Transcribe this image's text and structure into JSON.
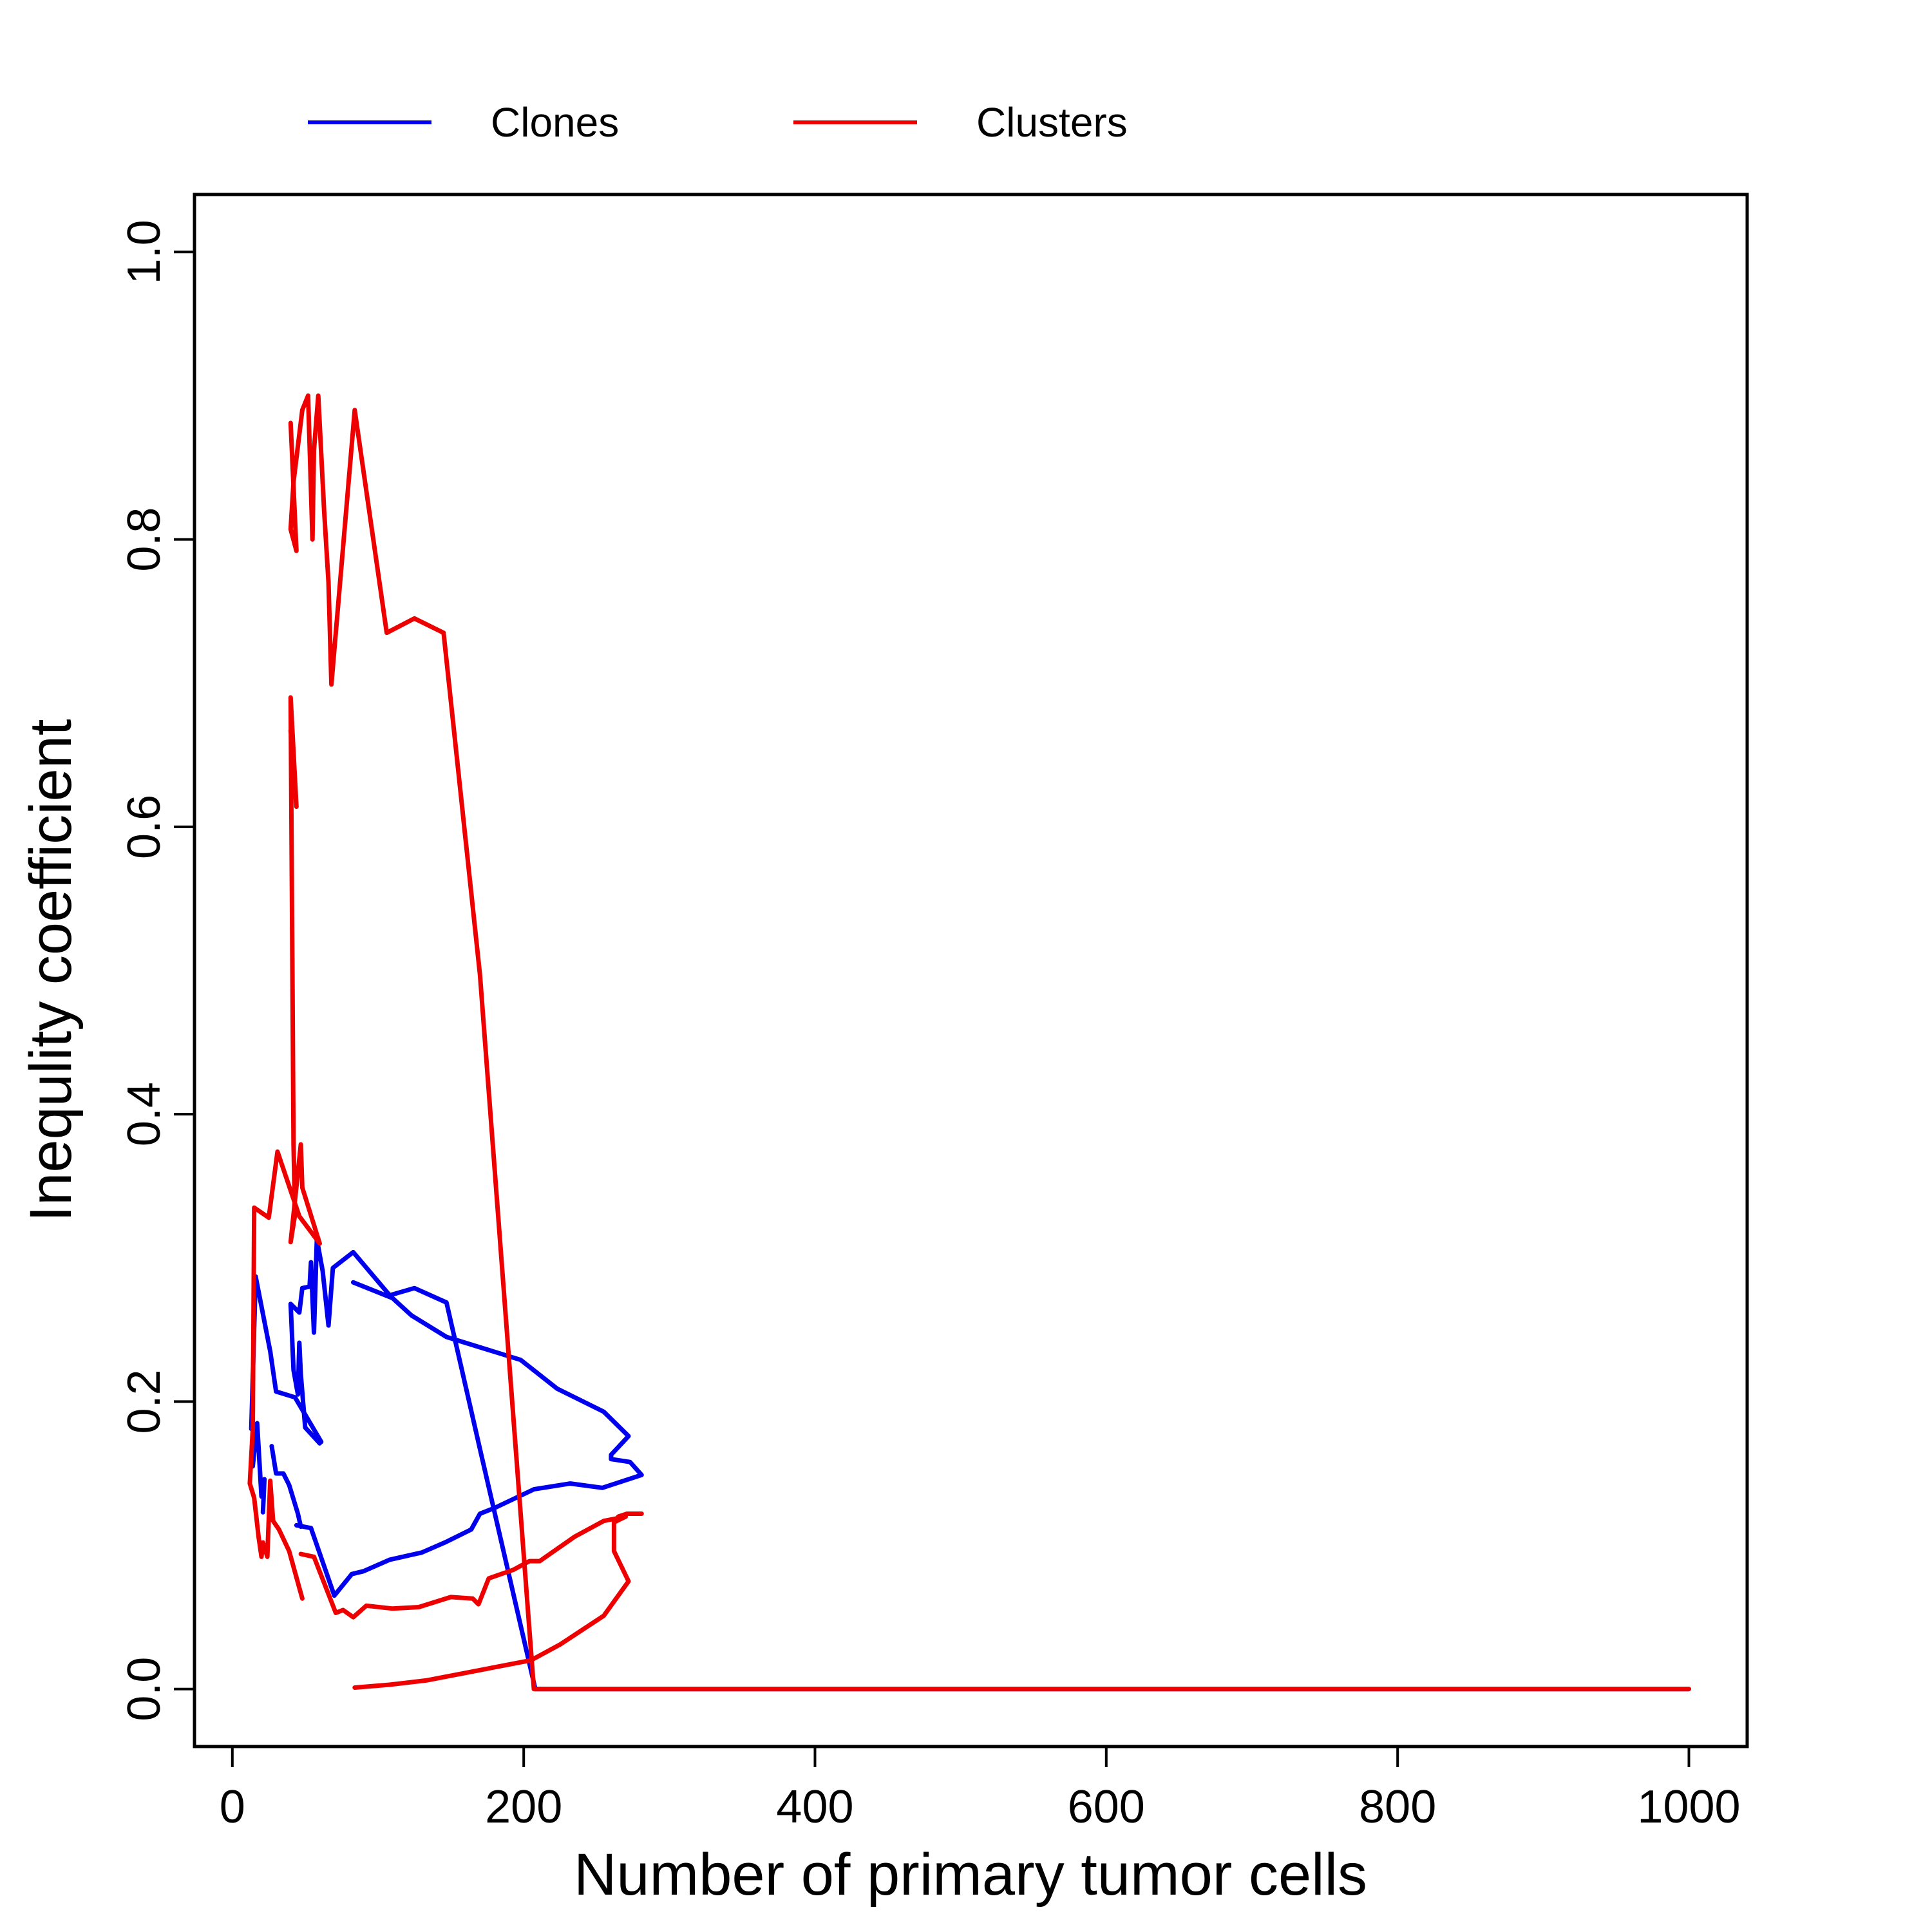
{
  "chart_data": {
    "type": "line",
    "title": "",
    "xlabel": "Number of primary tumor cells",
    "ylabel": "Inequlity coefficient",
    "xlim": [
      -26,
      1040
    ],
    "ylim": [
      -0.04,
      1.04
    ],
    "x_ticks": [
      0,
      200,
      400,
      600,
      800,
      1000
    ],
    "y_ticks": [
      0.0,
      0.2,
      0.4,
      0.6,
      0.8,
      1.0
    ],
    "x_tick_labels": [
      "0",
      "200",
      "400",
      "600",
      "800",
      "1000"
    ],
    "y_tick_labels": [
      "0.0",
      "0.2",
      "0.4",
      "0.6",
      "0.8",
      "1.0"
    ],
    "grid": false,
    "legend_position": "top, outside plot",
    "series": [
      {
        "name": "Clones",
        "color": "#0000ee",
        "points": [
          [
            60,
            0.171
          ],
          [
            50,
            0.182
          ],
          [
            47,
            0.219
          ],
          [
            46,
            0.241
          ],
          [
            45,
            0.205
          ],
          [
            42,
            0.222
          ],
          [
            40,
            0.268
          ],
          [
            46,
            0.262
          ],
          [
            48,
            0.279
          ],
          [
            53,
            0.28
          ],
          [
            54,
            0.297
          ],
          [
            56,
            0.248
          ],
          [
            58,
            0.313
          ],
          [
            62,
            0.291
          ],
          [
            66,
            0.253
          ],
          [
            69,
            0.293
          ],
          [
            83,
            0.304
          ],
          [
            108,
            0.274
          ],
          [
            125,
            0.279
          ],
          [
            147,
            0.269
          ],
          [
            170,
            0.167
          ],
          [
            208,
            0.0
          ],
          [
            1000,
            0.0
          ]
        ]
      },
      {
        "name": "Clones",
        "color": "#0000ee",
        "points": [
          [
            83,
            0.283
          ],
          [
            110,
            0.272
          ],
          [
            123,
            0.26
          ],
          [
            147,
            0.245
          ],
          [
            198,
            0.229
          ],
          [
            223,
            0.209
          ],
          [
            255,
            0.193
          ],
          [
            272,
            0.176
          ],
          [
            260,
            0.163
          ],
          [
            260,
            0.16
          ],
          [
            273,
            0.158
          ],
          [
            281,
            0.149
          ],
          [
            254,
            0.14
          ],
          [
            232,
            0.143
          ],
          [
            207,
            0.139
          ],
          [
            180,
            0.126
          ],
          [
            170,
            0.122
          ],
          [
            164,
            0.111
          ],
          [
            146,
            0.102
          ],
          [
            130,
            0.095
          ],
          [
            108,
            0.09
          ],
          [
            90,
            0.082
          ],
          [
            82,
            0.08
          ],
          [
            70,
            0.065
          ],
          [
            54,
            0.112
          ],
          [
            44,
            0.114
          ]
        ]
      },
      {
        "name": "Clones",
        "color": "#0000ee",
        "points": [
          [
            13,
            0.181
          ],
          [
            16,
            0.287
          ],
          [
            26,
            0.235
          ],
          [
            30,
            0.207
          ],
          [
            43,
            0.203
          ],
          [
            61,
            0.172
          ]
        ]
      },
      {
        "name": "Clones",
        "color": "#0000ee",
        "points": [
          [
            14,
            0.155
          ],
          [
            17,
            0.185
          ],
          [
            20,
            0.134
          ],
          [
            22,
            0.146
          ],
          [
            21,
            0.123
          ]
        ]
      },
      {
        "name": "Clones",
        "color": "#0000ee",
        "points": [
          [
            27,
            0.169
          ],
          [
            30,
            0.15
          ],
          [
            35,
            0.15
          ],
          [
            39,
            0.142
          ],
          [
            45,
            0.122
          ],
          [
            47,
            0.113
          ]
        ]
      },
      {
        "name": "Clusters",
        "color": "#ee0000",
        "points": [
          [
            40,
            0.881
          ],
          [
            44,
            0.792
          ],
          [
            40,
            0.807
          ],
          [
            42,
            0.84
          ],
          [
            48,
            0.89
          ],
          [
            52,
            0.9
          ],
          [
            55,
            0.8
          ],
          [
            56,
            0.862
          ],
          [
            59,
            0.9
          ],
          [
            63,
            0.82
          ],
          [
            66,
            0.77
          ],
          [
            68,
            0.699
          ],
          [
            84,
            0.89
          ],
          [
            106,
            0.735
          ],
          [
            125,
            0.745
          ],
          [
            145,
            0.735
          ],
          [
            170,
            0.497
          ],
          [
            207,
            0.0
          ],
          [
            1000,
            0.0
          ]
        ]
      },
      {
        "name": "Clusters",
        "color": "#ee0000",
        "points": [
          [
            40,
            0.667
          ],
          [
            44,
            0.614
          ],
          [
            40,
            0.69
          ],
          [
            42,
            0.379
          ],
          [
            43,
            0.33
          ],
          [
            40,
            0.311
          ],
          [
            47,
            0.379
          ],
          [
            48,
            0.349
          ],
          [
            60,
            0.31
          ],
          [
            46,
            0.329
          ],
          [
            31,
            0.374
          ],
          [
            25,
            0.328
          ],
          [
            15,
            0.335
          ],
          [
            14,
            0.181
          ],
          [
            12,
            0.143
          ],
          [
            15,
            0.133
          ],
          [
            18,
            0.106
          ],
          [
            20,
            0.092
          ],
          [
            21,
            0.102
          ],
          [
            24,
            0.092
          ],
          [
            26,
            0.145
          ],
          [
            28,
            0.117
          ],
          [
            32,
            0.111
          ],
          [
            39,
            0.096
          ],
          [
            48,
            0.063
          ]
        ]
      },
      {
        "name": "Clusters",
        "color": "#ee0000",
        "points": [
          [
            47,
            0.094
          ],
          [
            56,
            0.092
          ],
          [
            71,
            0.053
          ],
          [
            76,
            0.055
          ],
          [
            83,
            0.05
          ],
          [
            92,
            0.058
          ],
          [
            110,
            0.056
          ],
          [
            128,
            0.057
          ],
          [
            150,
            0.064
          ],
          [
            165,
            0.063
          ],
          [
            169,
            0.059
          ],
          [
            176,
            0.077
          ],
          [
            193,
            0.083
          ],
          [
            204,
            0.089
          ],
          [
            211,
            0.089
          ],
          [
            235,
            0.106
          ],
          [
            255,
            0.117
          ],
          [
            270,
            0.12
          ],
          [
            262,
            0.116
          ],
          [
            262,
            0.096
          ],
          [
            272,
            0.075
          ],
          [
            255,
            0.051
          ],
          [
            225,
            0.031
          ],
          [
            205,
            0.02
          ],
          [
            133,
            0.006
          ],
          [
            108,
            0.003
          ],
          [
            84,
            0.001
          ]
        ]
      },
      {
        "name": "Clusters",
        "color": "#ee0000",
        "points": [
          [
            265,
            0.12
          ],
          [
            271,
            0.122
          ],
          [
            281,
            0.122
          ]
        ]
      }
    ],
    "legend": [
      {
        "name": "Clones",
        "color": "#0000ee"
      },
      {
        "name": "Clusters",
        "color": "#ee0000"
      }
    ]
  }
}
